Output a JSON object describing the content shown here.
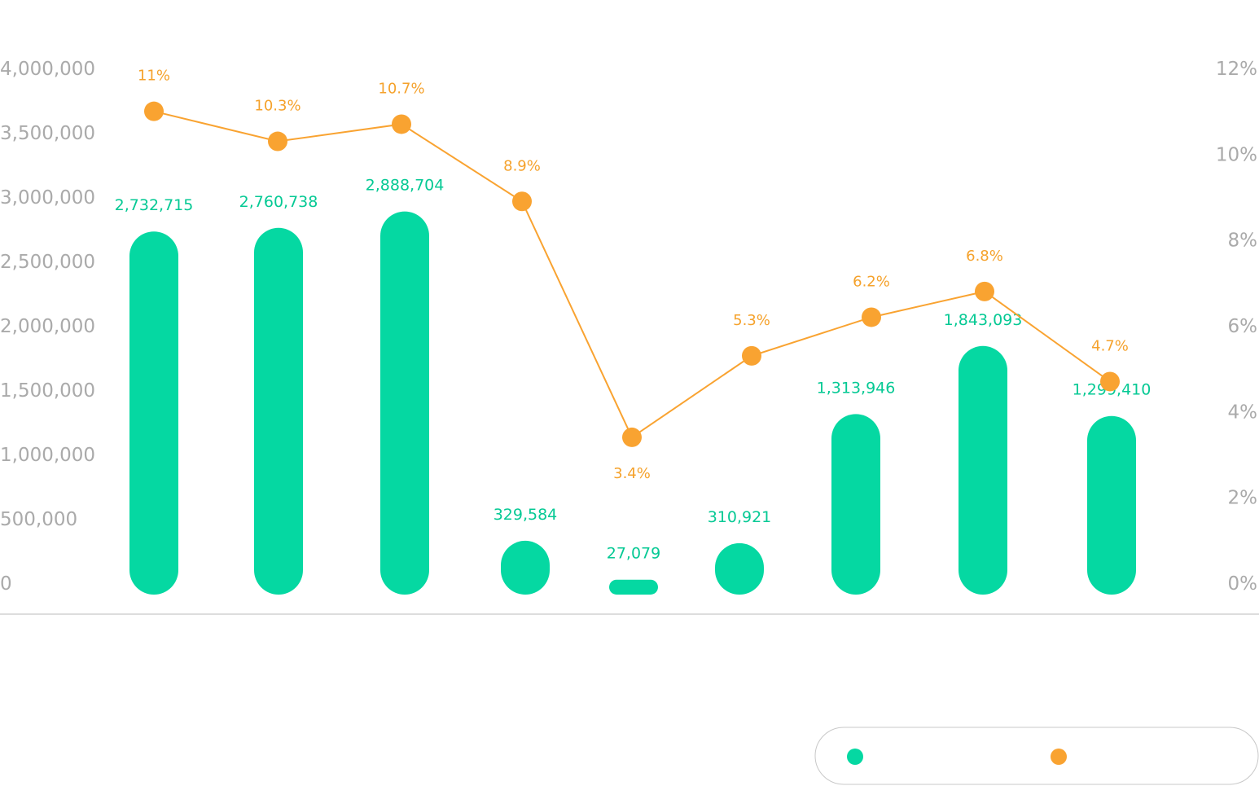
{
  "colors": {
    "bar": "#05d8a2",
    "bar_label": "#05c994",
    "line": "#f9a331",
    "line_label": "#f5a22c",
    "axis_text": "#aaaaaa",
    "baseline": "#bbbbbb",
    "legend_border": "#c8c8c8"
  },
  "chart_data": {
    "type": "bar",
    "categories": [
      "",
      "",
      "",
      "",
      "",
      "",
      "",
      "",
      ""
    ],
    "series": [
      {
        "type": "bar",
        "axis": "left",
        "values": [
          2732715,
          2760738,
          2888704,
          329584,
          27079,
          310921,
          1313946,
          1843093,
          1299410
        ],
        "labels": [
          "2,732,715",
          "2,760,738",
          "2,888,704",
          "329,584",
          "27,079",
          "310,921",
          "1,313,946",
          "1,843,093",
          "1,299,410"
        ]
      },
      {
        "type": "line",
        "axis": "right",
        "values": [
          11,
          10.3,
          10.7,
          8.9,
          3.4,
          5.3,
          6.2,
          6.8,
          4.7
        ],
        "labels": [
          "11%",
          "10.3%",
          "10.7%",
          "8.9%",
          "3.4%",
          "5.3%",
          "6.2%",
          "6.8%",
          "4.7%"
        ]
      }
    ],
    "y_left": {
      "range": [
        0,
        4000000
      ],
      "ticks": [
        0,
        500000,
        1000000,
        1500000,
        2000000,
        2500000,
        3000000,
        3500000,
        4000000
      ],
      "tick_labels": [
        "0",
        "500,000",
        "1,000,000",
        "1,500,000",
        "2,000,000",
        "2,500,000",
        "3,000,000",
        "3,500,000",
        "4,000,000"
      ]
    },
    "y_right": {
      "range": [
        0,
        12
      ],
      "ticks": [
        0,
        2,
        4,
        6,
        8,
        10,
        12
      ],
      "tick_labels": [
        "0%",
        "2%",
        "4%",
        "6%",
        "8%",
        "10%",
        "12%"
      ]
    },
    "grid": false,
    "legend": {
      "position": "bottom-right",
      "entries": [
        {
          "series": 0,
          "label": ""
        },
        {
          "series": 1,
          "label": ""
        }
      ]
    }
  }
}
